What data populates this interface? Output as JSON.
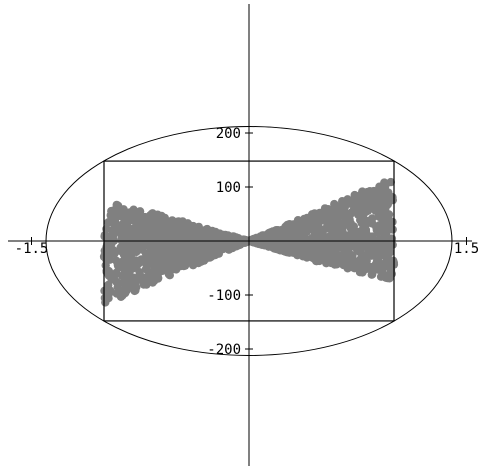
{
  "chart_data": {
    "type": "scatter",
    "title": "",
    "xlabel": "",
    "ylabel": "",
    "xlim": [
      -1.6,
      1.6
    ],
    "ylim": [
      -235,
      235
    ],
    "x_ticks": [
      {
        "value": -1.5,
        "label": "-1.5"
      },
      {
        "value": -1,
        "label": ""
      },
      {
        "value": 1,
        "label": ""
      },
      {
        "value": 1.5,
        "label": "1.5"
      }
    ],
    "y_ticks": [
      {
        "value": 200,
        "label": "200"
      },
      {
        "value": 100,
        "label": "100"
      },
      {
        "value": -100,
        "label": "-100"
      },
      {
        "value": -200,
        "label": "-200"
      }
    ],
    "colors": {
      "points": "#808080",
      "lines": "#000000"
    },
    "rectangle": {
      "x": [
        -1,
        1
      ],
      "y": [
        -148,
        148
      ]
    },
    "circle": {
      "rx": 1.4,
      "ry": 212
    },
    "series": [
      {
        "shape": "bow-tie",
        "x_range": [
          -1,
          1
        ],
        "right_upper_envelope": [
          [
            0,
            0
          ],
          [
            0.25,
            28
          ],
          [
            0.5,
            58
          ],
          [
            0.75,
            88
          ],
          [
            1,
            118
          ]
        ],
        "right_lower_envelope": [
          [
            0,
            0
          ],
          [
            0.25,
            -20
          ],
          [
            0.5,
            -40
          ],
          [
            0.75,
            -58
          ],
          [
            1,
            -72
          ]
        ],
        "left_upper_envelope": [
          [
            0,
            0
          ],
          [
            -0.25,
            20
          ],
          [
            -0.5,
            40
          ],
          [
            -0.75,
            58
          ],
          [
            -1,
            74
          ]
        ],
        "left_lower_envelope": [
          [
            0,
            0
          ],
          [
            -0.25,
            -30
          ],
          [
            -0.5,
            -58
          ],
          [
            -0.75,
            -88
          ],
          [
            -1,
            -118
          ]
        ]
      }
    ]
  }
}
